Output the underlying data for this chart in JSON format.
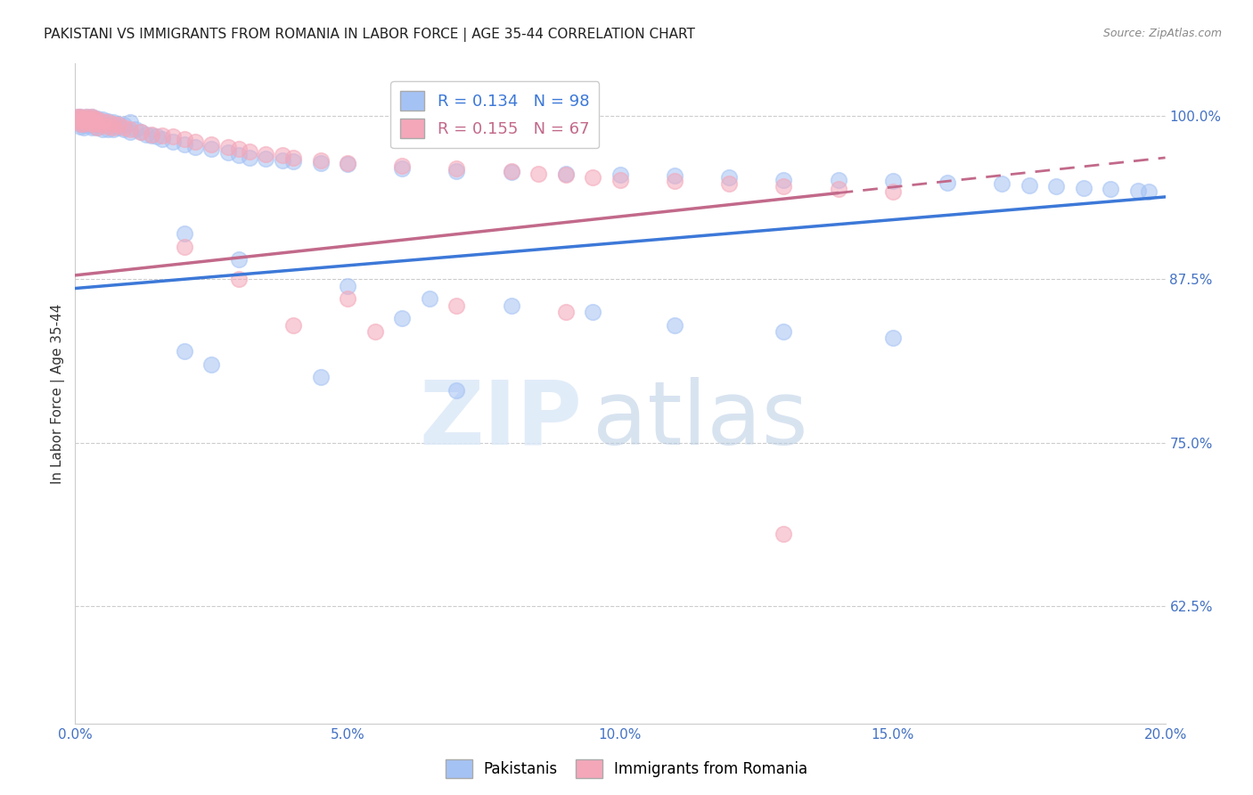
{
  "title": "PAKISTANI VS IMMIGRANTS FROM ROMANIA IN LABOR FORCE | AGE 35-44 CORRELATION CHART",
  "source": "Source: ZipAtlas.com",
  "xlabel_ticks": [
    "0.0%",
    "5.0%",
    "10.0%",
    "15.0%",
    "20.0%"
  ],
  "xlabel_values": [
    0.0,
    0.05,
    0.1,
    0.15,
    0.2
  ],
  "ylabel_ticks": [
    "62.5%",
    "75.0%",
    "87.5%",
    "100.0%"
  ],
  "ylabel_values": [
    0.625,
    0.75,
    0.875,
    1.0
  ],
  "xmin": 0.0,
  "xmax": 0.2,
  "ymin": 0.535,
  "ymax": 1.04,
  "blue_R": 0.134,
  "blue_N": 98,
  "pink_R": 0.155,
  "pink_N": 67,
  "legend_label_blue": "Pakistanis",
  "legend_label_pink": "Immigrants from Romania",
  "blue_color": "#a4c2f4",
  "pink_color": "#f4a7b9",
  "blue_line_color": "#3c78d8",
  "pink_line_color": "#c2698a",
  "ylabel": "In Labor Force | Age 35-44",
  "watermark_zip": "ZIP",
  "watermark_atlas": "atlas",
  "blue_scatter_x": [
    0.0005,
    0.0005,
    0.0005,
    0.0005,
    0.001,
    0.001,
    0.001,
    0.001,
    0.001,
    0.0015,
    0.0015,
    0.0015,
    0.0015,
    0.0015,
    0.002,
    0.002,
    0.002,
    0.002,
    0.0025,
    0.0025,
    0.0025,
    0.003,
    0.003,
    0.003,
    0.003,
    0.003,
    0.0035,
    0.0035,
    0.0035,
    0.004,
    0.004,
    0.004,
    0.004,
    0.005,
    0.005,
    0.005,
    0.005,
    0.006,
    0.006,
    0.006,
    0.007,
    0.007,
    0.007,
    0.008,
    0.008,
    0.009,
    0.009,
    0.01,
    0.01,
    0.011,
    0.012,
    0.013,
    0.014,
    0.015,
    0.016,
    0.018,
    0.02,
    0.022,
    0.025,
    0.028,
    0.03,
    0.032,
    0.035,
    0.038,
    0.04,
    0.045,
    0.05,
    0.06,
    0.07,
    0.08,
    0.09,
    0.1,
    0.11,
    0.12,
    0.13,
    0.14,
    0.15,
    0.16,
    0.17,
    0.175,
    0.18,
    0.185,
    0.19,
    0.195,
    0.197,
    0.02,
    0.03,
    0.05,
    0.065,
    0.08,
    0.095,
    0.06,
    0.11,
    0.13,
    0.15,
    0.02,
    0.025,
    0.045,
    0.07
  ],
  "blue_scatter_y": [
    0.999,
    0.998,
    0.997,
    0.996,
    0.999,
    0.998,
    0.996,
    0.994,
    0.992,
    0.998,
    0.997,
    0.995,
    0.993,
    0.991,
    0.999,
    0.997,
    0.995,
    0.993,
    0.998,
    0.996,
    0.993,
    0.999,
    0.998,
    0.996,
    0.994,
    0.991,
    0.997,
    0.995,
    0.992,
    0.998,
    0.996,
    0.994,
    0.991,
    0.997,
    0.995,
    0.993,
    0.99,
    0.996,
    0.993,
    0.99,
    0.995,
    0.993,
    0.99,
    0.994,
    0.991,
    0.993,
    0.99,
    0.995,
    0.988,
    0.99,
    0.988,
    0.986,
    0.985,
    0.984,
    0.982,
    0.98,
    0.978,
    0.976,
    0.975,
    0.972,
    0.97,
    0.968,
    0.967,
    0.966,
    0.965,
    0.964,
    0.963,
    0.96,
    0.958,
    0.957,
    0.956,
    0.955,
    0.954,
    0.953,
    0.951,
    0.951,
    0.95,
    0.949,
    0.948,
    0.947,
    0.946,
    0.945,
    0.944,
    0.943,
    0.942,
    0.91,
    0.89,
    0.87,
    0.86,
    0.855,
    0.85,
    0.845,
    0.84,
    0.835,
    0.83,
    0.82,
    0.81,
    0.8,
    0.79
  ],
  "pink_scatter_x": [
    0.0005,
    0.0005,
    0.0005,
    0.001,
    0.001,
    0.001,
    0.001,
    0.0015,
    0.0015,
    0.0015,
    0.002,
    0.002,
    0.002,
    0.0025,
    0.0025,
    0.003,
    0.003,
    0.003,
    0.0035,
    0.0035,
    0.004,
    0.004,
    0.004,
    0.005,
    0.005,
    0.006,
    0.006,
    0.007,
    0.007,
    0.008,
    0.009,
    0.01,
    0.012,
    0.014,
    0.016,
    0.018,
    0.02,
    0.022,
    0.025,
    0.028,
    0.03,
    0.032,
    0.035,
    0.038,
    0.04,
    0.045,
    0.05,
    0.06,
    0.07,
    0.08,
    0.085,
    0.09,
    0.095,
    0.1,
    0.11,
    0.12,
    0.13,
    0.14,
    0.15,
    0.13,
    0.02,
    0.03,
    0.05,
    0.07,
    0.09,
    0.04,
    0.055
  ],
  "pink_scatter_y": [
    0.999,
    0.998,
    0.996,
    0.999,
    0.998,
    0.996,
    0.994,
    0.998,
    0.997,
    0.994,
    0.999,
    0.997,
    0.995,
    0.998,
    0.995,
    0.999,
    0.997,
    0.994,
    0.998,
    0.995,
    0.997,
    0.994,
    0.991,
    0.996,
    0.993,
    0.995,
    0.992,
    0.994,
    0.991,
    0.993,
    0.991,
    0.99,
    0.988,
    0.986,
    0.985,
    0.984,
    0.982,
    0.98,
    0.978,
    0.976,
    0.975,
    0.973,
    0.971,
    0.97,
    0.968,
    0.966,
    0.964,
    0.962,
    0.96,
    0.958,
    0.956,
    0.955,
    0.953,
    0.951,
    0.95,
    0.948,
    0.946,
    0.944,
    0.942,
    0.68,
    0.9,
    0.875,
    0.86,
    0.855,
    0.85,
    0.84,
    0.835
  ],
  "blue_line_x": [
    0.0,
    0.2
  ],
  "blue_line_y": [
    0.868,
    0.938
  ],
  "pink_line_x": [
    0.0,
    0.2
  ],
  "pink_line_y": [
    0.878,
    0.968
  ],
  "pink_line_solid_end": 0.14,
  "title_color": "#222222",
  "tick_color": "#4472c4",
  "grid_color": "#cccccc",
  "background_color": "#ffffff",
  "title_fontsize": 11,
  "axis_fontsize": 11,
  "tick_fontsize": 11
}
